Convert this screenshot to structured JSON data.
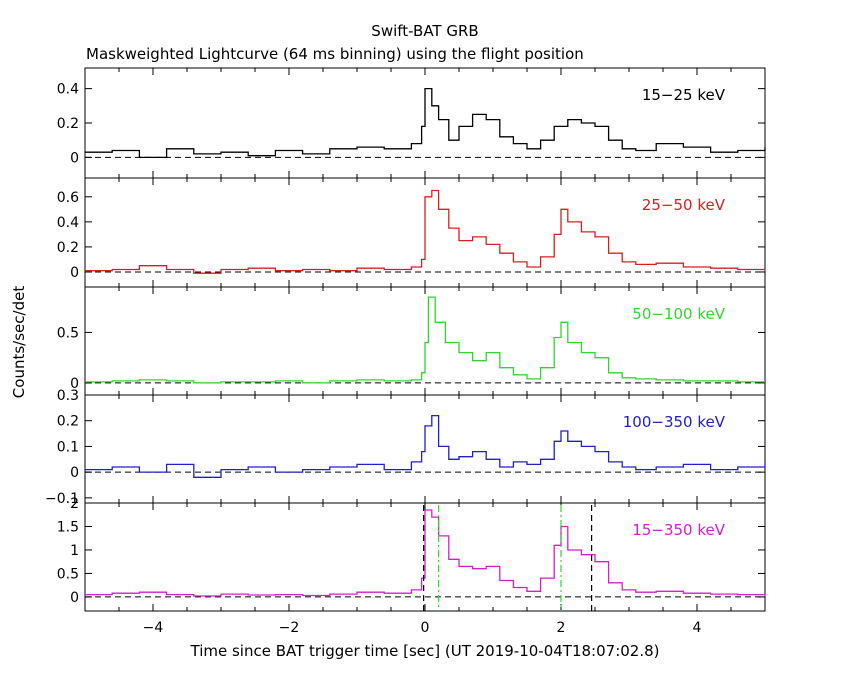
{
  "chart_data": {
    "type": "line",
    "title": "Swift-BAT GRB",
    "subtitle": "Maskweighted Lightcurve (64 ms binning) using the flight position",
    "xlabel": "Time since BAT trigger time [sec] (UT 2019-10-04T18:07:02.8)",
    "ylabel": "Counts/sec/det",
    "xlim": [
      -5,
      5
    ],
    "x_ticks": [
      "−4",
      "−2",
      "0",
      "2",
      "4"
    ],
    "grid": false,
    "panels": [
      {
        "label": "15−25 keV",
        "color": "#000000",
        "ylim": [
          -0.12,
          0.52
        ],
        "y_ticks": [
          "0",
          "0.2",
          "0.4"
        ],
        "series": [
          {
            "x": [
              -5.0,
              -4.6,
              -4.2,
              -3.8,
              -3.4,
              -3.0,
              -2.6,
              -2.2,
              -1.8,
              -1.4,
              -1.0,
              -0.6,
              -0.2,
              -0.05,
              0.0,
              0.1,
              0.2,
              0.35,
              0.5,
              0.7,
              0.9,
              1.1,
              1.3,
              1.5,
              1.7,
              1.9,
              2.1,
              2.3,
              2.5,
              2.7,
              2.9,
              3.1,
              3.4,
              3.8,
              4.2,
              4.6,
              5.0
            ],
            "y": [
              0.03,
              0.04,
              0.0,
              0.05,
              0.02,
              0.03,
              0.01,
              0.04,
              0.02,
              0.05,
              0.06,
              0.05,
              0.08,
              0.18,
              0.4,
              0.3,
              0.22,
              0.1,
              0.18,
              0.25,
              0.22,
              0.12,
              0.08,
              0.05,
              0.1,
              0.18,
              0.22,
              0.2,
              0.18,
              0.1,
              0.05,
              0.04,
              0.08,
              0.06,
              0.03,
              0.04,
              0.06
            ]
          }
        ]
      },
      {
        "label": "25−50 keV",
        "color": "#d62020",
        "ylim": [
          -0.12,
          0.75
        ],
        "y_ticks": [
          "0",
          "0.2",
          "0.4",
          "0.6"
        ],
        "series": [
          {
            "x": [
              -5.0,
              -4.6,
              -4.2,
              -3.8,
              -3.4,
              -3.0,
              -2.6,
              -2.2,
              -1.8,
              -1.4,
              -1.0,
              -0.6,
              -0.2,
              -0.05,
              0.0,
              0.1,
              0.2,
              0.35,
              0.5,
              0.7,
              0.9,
              1.1,
              1.3,
              1.5,
              1.7,
              1.9,
              2.0,
              2.1,
              2.3,
              2.5,
              2.7,
              2.9,
              3.1,
              3.4,
              3.8,
              4.2,
              4.6,
              5.0
            ],
            "y": [
              0.01,
              0.02,
              0.05,
              0.02,
              -0.01,
              0.02,
              0.03,
              0.01,
              0.02,
              0.01,
              0.03,
              0.02,
              0.04,
              0.1,
              0.6,
              0.65,
              0.5,
              0.35,
              0.25,
              0.28,
              0.22,
              0.15,
              0.08,
              0.04,
              0.12,
              0.3,
              0.5,
              0.4,
              0.32,
              0.28,
              0.15,
              0.08,
              0.06,
              0.07,
              0.04,
              0.03,
              0.02,
              0.01
            ]
          }
        ]
      },
      {
        "label": "50−100 keV",
        "color": "#30d530",
        "ylim": [
          -0.12,
          0.95
        ],
        "y_ticks": [
          "0",
          "0.5"
        ],
        "series": [
          {
            "x": [
              -5.0,
              -4.6,
              -4.2,
              -3.8,
              -3.4,
              -3.0,
              -2.6,
              -2.2,
              -1.8,
              -1.4,
              -1.0,
              -0.6,
              -0.2,
              -0.05,
              0.0,
              0.05,
              0.15,
              0.3,
              0.5,
              0.7,
              0.9,
              1.1,
              1.3,
              1.5,
              1.7,
              1.9,
              2.0,
              2.1,
              2.3,
              2.5,
              2.7,
              2.9,
              3.1,
              3.4,
              3.8,
              4.2,
              4.6,
              5.0
            ],
            "y": [
              0.01,
              0.02,
              0.03,
              0.02,
              0.0,
              0.01,
              0.01,
              0.02,
              0.0,
              0.02,
              0.03,
              0.02,
              0.03,
              0.1,
              0.4,
              0.85,
              0.6,
              0.4,
              0.3,
              0.22,
              0.3,
              0.15,
              0.08,
              0.04,
              0.15,
              0.45,
              0.6,
              0.4,
              0.3,
              0.25,
              0.1,
              0.05,
              0.04,
              0.03,
              0.02,
              0.02,
              0.01,
              0.01
            ]
          }
        ]
      },
      {
        "label": "100−350 keV",
        "color": "#2020c8",
        "ylim": [
          -0.12,
          0.3
        ],
        "y_ticks": [
          "−0.1",
          "0",
          "0.1",
          "0.2",
          "0.3"
        ],
        "series": [
          {
            "x": [
              -5.0,
              -4.6,
              -4.2,
              -3.8,
              -3.4,
              -3.0,
              -2.6,
              -2.2,
              -1.8,
              -1.4,
              -1.0,
              -0.6,
              -0.2,
              -0.05,
              0.0,
              0.1,
              0.2,
              0.35,
              0.5,
              0.7,
              0.9,
              1.1,
              1.3,
              1.5,
              1.7,
              1.9,
              2.0,
              2.1,
              2.3,
              2.5,
              2.7,
              2.9,
              3.1,
              3.4,
              3.8,
              4.2,
              4.6,
              5.0
            ],
            "y": [
              0.01,
              0.02,
              0.0,
              0.03,
              -0.02,
              0.01,
              0.02,
              0.0,
              0.01,
              0.02,
              0.03,
              0.01,
              0.04,
              0.08,
              0.18,
              0.22,
              0.1,
              0.05,
              0.06,
              0.08,
              0.05,
              0.02,
              0.04,
              0.03,
              0.05,
              0.12,
              0.16,
              0.12,
              0.1,
              0.08,
              0.04,
              0.02,
              0.01,
              0.02,
              0.03,
              0.01,
              0.02,
              0.04
            ]
          }
        ]
      },
      {
        "label": "15−350 keV",
        "color": "#d020c8",
        "ylim": [
          -0.3,
          2.0
        ],
        "y_ticks": [
          "0",
          "0.5",
          "1",
          "1.5",
          "2"
        ],
        "series": [
          {
            "x": [
              -5.0,
              -4.6,
              -4.2,
              -3.8,
              -3.4,
              -3.0,
              -2.6,
              -2.2,
              -1.8,
              -1.4,
              -1.0,
              -0.6,
              -0.2,
              -0.05,
              0.0,
              0.1,
              0.2,
              0.35,
              0.5,
              0.7,
              0.9,
              1.1,
              1.3,
              1.5,
              1.7,
              1.9,
              2.0,
              2.1,
              2.3,
              2.5,
              2.7,
              2.9,
              3.1,
              3.4,
              3.8,
              4.2,
              4.6,
              5.0
            ],
            "y": [
              0.05,
              0.08,
              0.1,
              0.05,
              0.02,
              0.06,
              0.04,
              0.05,
              0.03,
              0.06,
              0.1,
              0.08,
              0.15,
              0.4,
              1.85,
              1.7,
              1.3,
              0.8,
              0.65,
              0.6,
              0.65,
              0.35,
              0.2,
              0.12,
              0.4,
              1.1,
              1.5,
              1.0,
              0.9,
              0.75,
              0.3,
              0.15,
              0.1,
              0.12,
              0.08,
              0.06,
              0.05,
              0.02
            ]
          }
        ],
        "markers": [
          {
            "x": -0.02,
            "color": "#000000",
            "style": "dashed"
          },
          {
            "x": 0.2,
            "color": "#30d530",
            "style": "dashdot"
          },
          {
            "x": 2.0,
            "color": "#30d530",
            "style": "dashdot"
          },
          {
            "x": 2.45,
            "color": "#000000",
            "style": "dashed"
          }
        ]
      }
    ]
  }
}
